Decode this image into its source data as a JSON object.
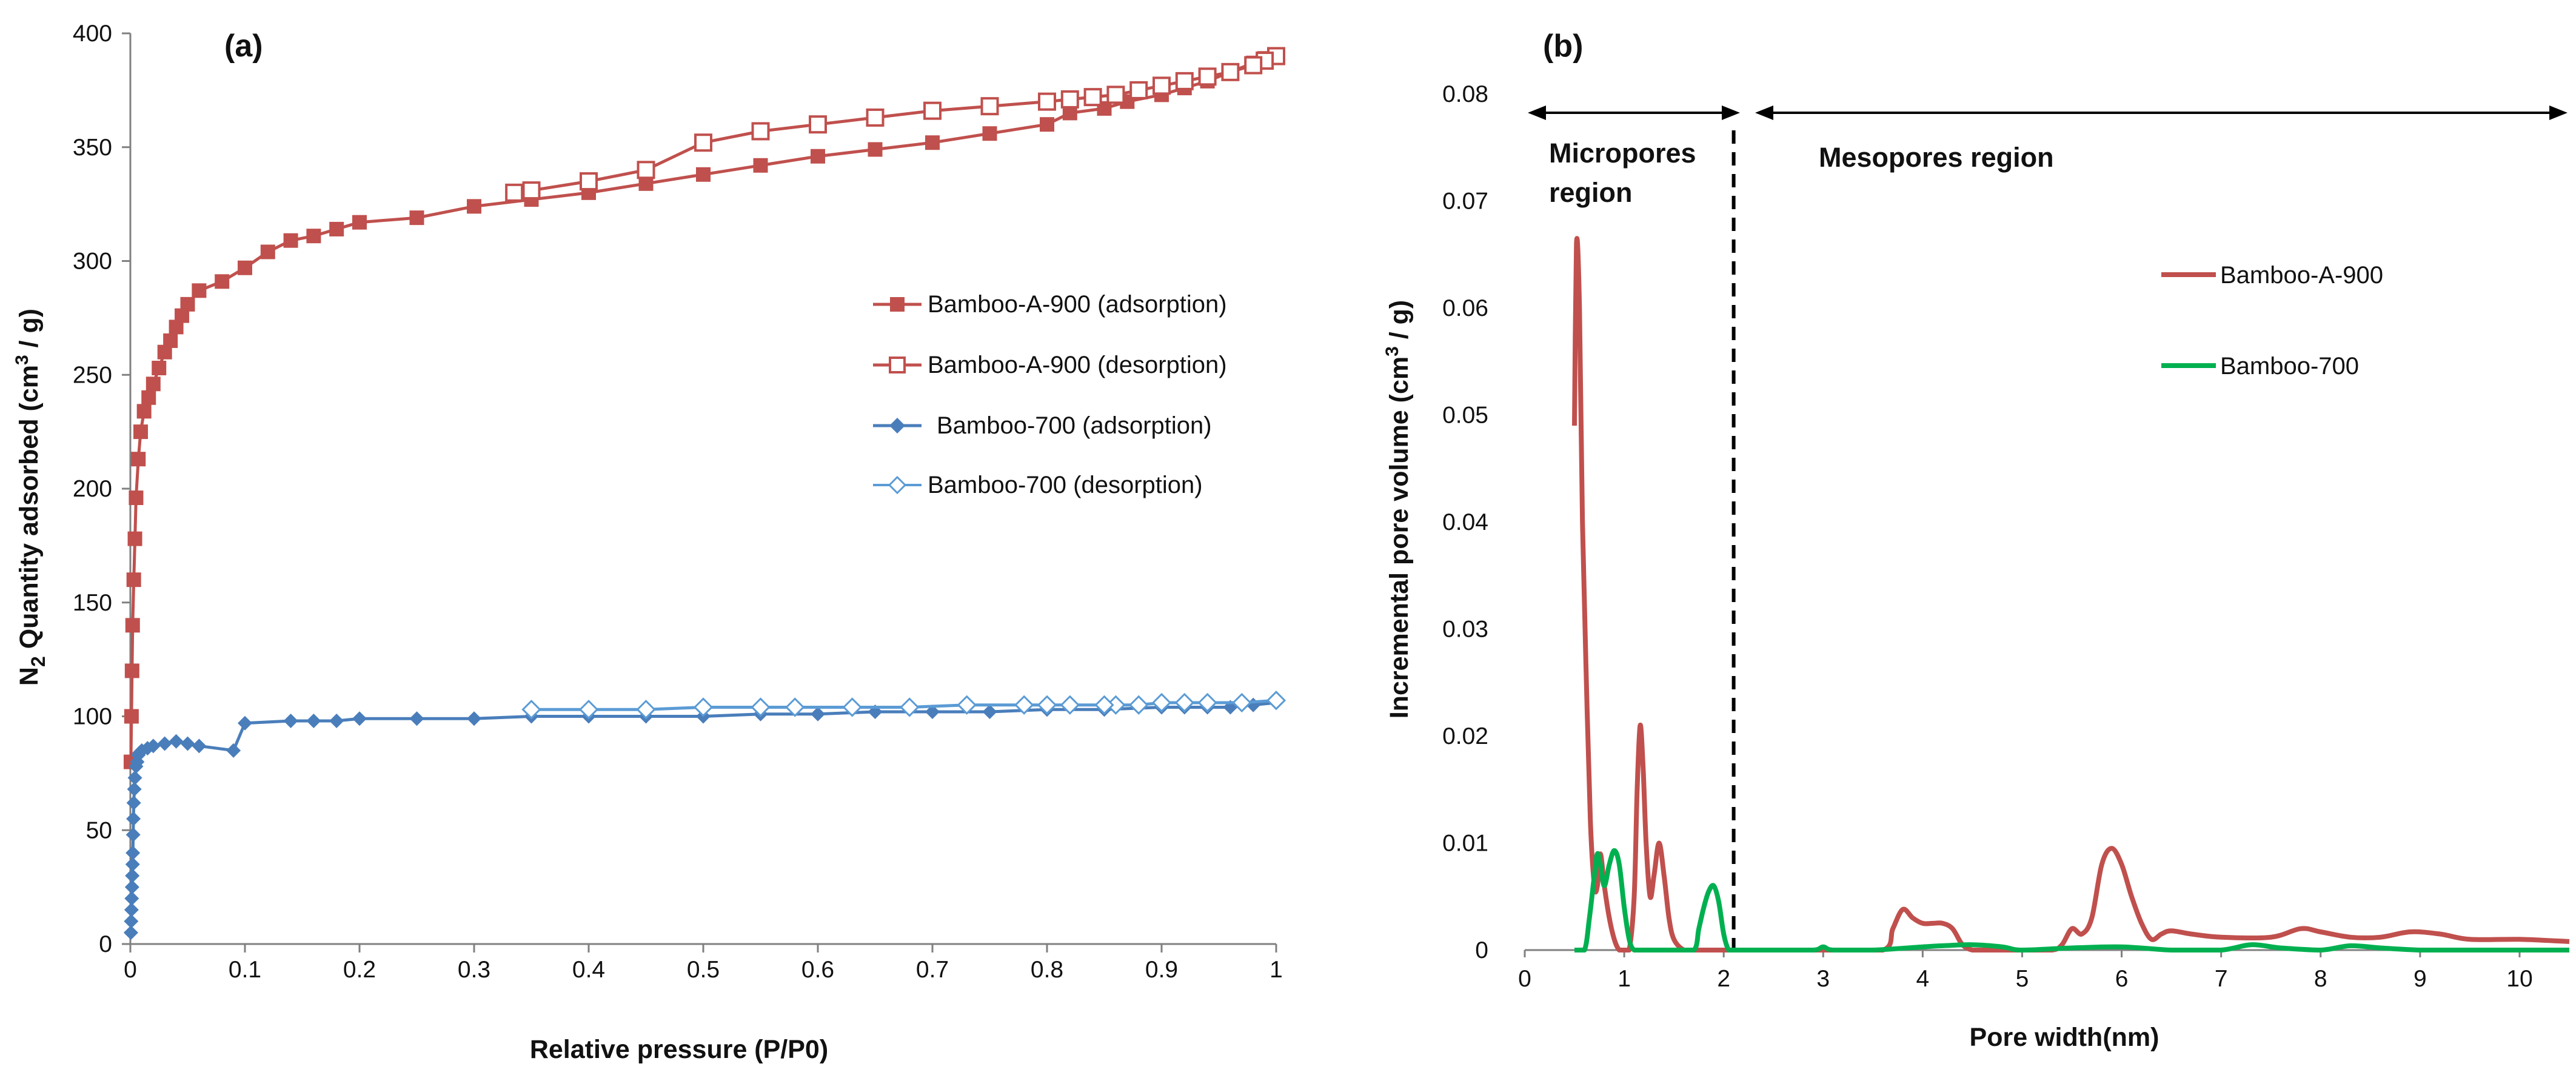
{
  "colors": {
    "red": "#C0504D",
    "red_dark": "#A5201E",
    "blue": "#4A7EBB",
    "blue_light": "#5B9BD5",
    "green": "#00B050",
    "axis": "#808080"
  },
  "panel_a": {
    "panel_label": "(a)",
    "xlabel": "Relative pressure (P/P0)",
    "ylabel_parts": {
      "n": "N",
      "sub": "2",
      "mid": " Quantity adsorbed (cm",
      "sup": "3",
      "end": " / g)"
    },
    "legend": {
      "a900_ads": "Bamboo-A-900 (adsorption)",
      "a900_des": "Bamboo-A-900 (desorption)",
      "b700_ads": "Bamboo-700 (adsorption)",
      "b700_des": "Bamboo-700 (desorption)"
    }
  },
  "panel_b": {
    "panel_label": "(b)",
    "xlabel": "Pore width(nm)",
    "ylabel_parts": {
      "mid": "Incremental pore volume (cm",
      "sup": "3",
      "end": " / g)"
    },
    "micro_label_1": "Micropores",
    "micro_label_2": "region",
    "meso_label": "Mesopores region",
    "legend": {
      "a900": "Bamboo-A-900",
      "b700": "Bamboo-700"
    }
  },
  "chart_data": [
    {
      "type": "scatter",
      "panel": "(a)",
      "title": "",
      "xlabel": "Relative pressure (P/P0)",
      "ylabel": "N2 Quantity adsorbed (cm3 / g)",
      "xlim": [
        0,
        1
      ],
      "ylim": [
        0,
        400
      ],
      "xticks": [
        0,
        0.1,
        0.2,
        0.3,
        0.4,
        0.5,
        0.6,
        0.7,
        0.8,
        0.9,
        1
      ],
      "xtick_labels": [
        "0",
        "0.1",
        "0.2",
        "0.3",
        "0.4",
        "0.5",
        "0.6",
        "0.7",
        "0.8",
        "0.9",
        "1"
      ],
      "yticks": [
        0,
        50,
        100,
        150,
        200,
        250,
        300,
        350,
        400
      ],
      "ytick_labels": [
        "0",
        "50",
        "100",
        "150",
        "200",
        "250",
        "300",
        "350",
        "400"
      ],
      "legend_position": "right",
      "series": [
        {
          "name": "Bamboo-A-900 (adsorption)",
          "color": "#C0504D",
          "marker": "square-filled",
          "x": [
            0.0005,
            0.001,
            0.0015,
            0.002,
            0.003,
            0.004,
            0.005,
            0.007,
            0.009,
            0.012,
            0.016,
            0.02,
            0.025,
            0.03,
            0.035,
            0.04,
            0.045,
            0.05,
            0.06,
            0.08,
            0.1,
            0.12,
            0.14,
            0.16,
            0.18,
            0.2,
            0.25,
            0.3,
            0.35,
            0.4,
            0.45,
            0.5,
            0.55,
            0.6,
            0.65,
            0.7,
            0.75,
            0.8,
            0.82,
            0.85,
            0.87,
            0.9,
            0.92,
            0.94,
            0.96,
            0.98,
            0.99,
            1.0
          ],
          "y": [
            80,
            100,
            120,
            140,
            160,
            178,
            196,
            213,
            225,
            234,
            240,
            246,
            253,
            260,
            265,
            271,
            276,
            281,
            287,
            291,
            297,
            304,
            309,
            311,
            314,
            317,
            319,
            324,
            327,
            330,
            334,
            338,
            342,
            346,
            349,
            352,
            356,
            360,
            365,
            367,
            370,
            373,
            376,
            379,
            383,
            387,
            389,
            390
          ]
        },
        {
          "name": "Bamboo-A-900 (desorption)",
          "color": "#C0504D",
          "marker": "square-open",
          "x": [
            1.0,
            0.99,
            0.98,
            0.96,
            0.94,
            0.92,
            0.9,
            0.88,
            0.86,
            0.84,
            0.82,
            0.8,
            0.75,
            0.7,
            0.65,
            0.6,
            0.55,
            0.5,
            0.45,
            0.4,
            0.35,
            0.335
          ],
          "y": [
            390,
            388,
            386,
            383,
            381,
            379,
            377,
            375,
            373,
            372,
            371,
            370,
            368,
            366,
            363,
            360,
            357,
            352,
            340,
            335,
            331,
            330
          ]
        },
        {
          "name": "Bamboo-700 (adsorption)",
          "color": "#4A7EBB",
          "marker": "diamond-filled",
          "x": [
            0.0005,
            0.0007,
            0.001,
            0.0012,
            0.0015,
            0.0017,
            0.002,
            0.0022,
            0.0025,
            0.0027,
            0.003,
            0.0035,
            0.004,
            0.005,
            0.006,
            0.007,
            0.008,
            0.01,
            0.015,
            0.02,
            0.03,
            0.04,
            0.05,
            0.06,
            0.09,
            0.1,
            0.14,
            0.16,
            0.18,
            0.2,
            0.25,
            0.3,
            0.35,
            0.4,
            0.45,
            0.5,
            0.55,
            0.6,
            0.65,
            0.7,
            0.75,
            0.8,
            0.85,
            0.9,
            0.92,
            0.94,
            0.96,
            0.98,
            1.0
          ],
          "y": [
            5,
            10,
            15,
            20,
            25,
            30,
            35,
            40,
            48,
            55,
            62,
            68,
            73,
            78,
            80,
            83,
            84,
            85,
            86,
            87,
            88,
            89,
            88,
            87,
            85,
            97,
            98,
            98,
            98,
            99,
            99,
            99,
            100,
            100,
            100,
            100,
            101,
            101,
            102,
            102,
            102,
            103,
            103,
            104,
            104,
            104,
            104,
            105,
            106
          ]
        },
        {
          "name": "Bamboo-700 (desorption)",
          "color": "#5B9BD5",
          "marker": "diamond-open",
          "x": [
            1.0,
            0.97,
            0.94,
            0.92,
            0.9,
            0.88,
            0.86,
            0.85,
            0.82,
            0.8,
            0.78,
            0.73,
            0.68,
            0.63,
            0.58,
            0.55,
            0.5,
            0.45,
            0.4,
            0.35
          ],
          "y": [
            107,
            106,
            106,
            106,
            106,
            105,
            105,
            105,
            105,
            105,
            105,
            105,
            104,
            104,
            104,
            104,
            104,
            103,
            103,
            103
          ]
        }
      ]
    },
    {
      "type": "line",
      "panel": "(b)",
      "title": "",
      "xlabel": "Pore width(nm)",
      "ylabel": "Incremental pore volume (cm3 / g)",
      "xlim": [
        0,
        10.5
      ],
      "ylim": [
        0,
        0.08
      ],
      "xticks": [
        0,
        1,
        2,
        3,
        4,
        5,
        6,
        7,
        8,
        9,
        10
      ],
      "xtick_labels": [
        "0",
        "1",
        "2",
        "3",
        "4",
        "5",
        "6",
        "7",
        "8",
        "9",
        "10"
      ],
      "yticks": [
        0,
        0.01,
        0.02,
        0.03,
        0.04,
        0.05,
        0.06,
        0.07,
        0.08
      ],
      "ytick_labels": [
        "0",
        "0.01",
        "0.02",
        "0.03",
        "0.04",
        "0.05",
        "0.06",
        "0.07",
        "0.08"
      ],
      "legend_position": "right",
      "annotations": [
        {
          "text": "Micropores region",
          "x_range": [
            0,
            2.1
          ],
          "y": 0.078
        },
        {
          "text": "Mesopores region",
          "x_range": [
            2.3,
            10.5
          ],
          "y": 0.078
        },
        {
          "type": "dashed-vline",
          "x": 2.1
        }
      ],
      "series": [
        {
          "name": "Bamboo-A-900",
          "color": "#C0504D",
          "x": [
            0.5,
            0.52,
            0.55,
            0.58,
            0.62,
            0.66,
            0.7,
            0.73,
            0.76,
            0.8,
            0.85,
            0.9,
            0.95,
            1.0,
            1.05,
            1.1,
            1.13,
            1.16,
            1.19,
            1.22,
            1.26,
            1.3,
            1.35,
            1.4,
            1.45,
            1.5,
            1.6,
            1.7,
            1.8,
            2.0,
            3.0,
            3.6,
            3.7,
            3.8,
            3.9,
            4.0,
            4.1,
            4.2,
            4.3,
            4.4,
            4.5,
            4.6,
            5.0,
            5.3,
            5.4,
            5.5,
            5.6,
            5.7,
            5.8,
            5.9,
            6.0,
            6.1,
            6.2,
            6.3,
            6.4,
            6.5,
            6.7,
            7.0,
            7.5,
            7.8,
            8.0,
            8.3,
            8.6,
            8.9,
            9.2,
            9.5,
            10.0,
            10.5
          ],
          "y": [
            0.049,
            0.066,
            0.06,
            0.04,
            0.025,
            0.012,
            0.006,
            0.006,
            0.009,
            0.006,
            0.003,
            0.001,
            0.0,
            0.0,
            0.0,
            0.005,
            0.015,
            0.021,
            0.017,
            0.01,
            0.005,
            0.007,
            0.01,
            0.007,
            0.003,
            0.001,
            0.0,
            0.0,
            0.0,
            0.0,
            0.0,
            0.0,
            0.002,
            0.0038,
            0.003,
            0.0025,
            0.0025,
            0.0025,
            0.002,
            0.0005,
            0.0,
            0.0,
            0.0,
            0.0,
            0.0005,
            0.002,
            0.0015,
            0.003,
            0.008,
            0.0095,
            0.008,
            0.005,
            0.0025,
            0.001,
            0.0015,
            0.0018,
            0.0015,
            0.0012,
            0.0012,
            0.002,
            0.0017,
            0.0012,
            0.0012,
            0.0017,
            0.0015,
            0.001,
            0.001,
            0.0008
          ]
        },
        {
          "name": "Bamboo-700",
          "color": "#00B050",
          "x": [
            0.5,
            0.6,
            0.65,
            0.7,
            0.73,
            0.76,
            0.8,
            0.85,
            0.9,
            0.95,
            1.0,
            1.05,
            1.1,
            1.2,
            1.5,
            1.7,
            1.75,
            1.8,
            1.85,
            1.9,
            1.95,
            2.0,
            2.05,
            2.1,
            2.5,
            2.9,
            3.0,
            3.1,
            3.5,
            4.0,
            4.2,
            4.5,
            4.8,
            5.0,
            5.5,
            6.0,
            6.5,
            7.0,
            7.3,
            7.6,
            8.0,
            8.3,
            8.6,
            9.0,
            9.5,
            10.0,
            10.5
          ],
          "y": [
            0.0,
            0.0,
            0.003,
            0.007,
            0.009,
            0.008,
            0.006,
            0.008,
            0.0093,
            0.008,
            0.004,
            0.001,
            0.0,
            0.0,
            0.0,
            0.0,
            0.002,
            0.004,
            0.0055,
            0.006,
            0.0045,
            0.0015,
            0.0,
            0.0,
            0.0,
            0.0,
            0.0003,
            0.0,
            0.0,
            0.0003,
            0.0004,
            0.0005,
            0.0003,
            0.0,
            0.0002,
            0.0003,
            0.0,
            0.0,
            0.0005,
            0.0002,
            0.0,
            0.0004,
            0.0002,
            0.0,
            0.0,
            0.0,
            0.0
          ]
        }
      ]
    }
  ]
}
